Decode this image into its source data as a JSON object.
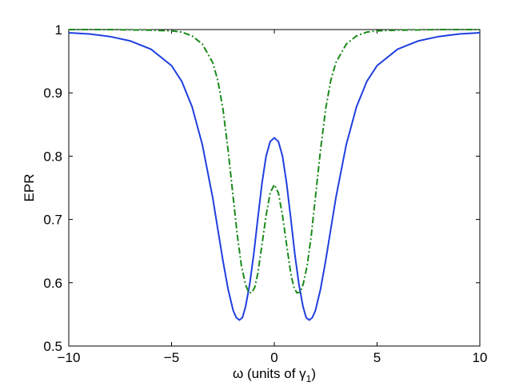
{
  "chart_data": {
    "type": "line",
    "title": "",
    "xlabel": "ω (units of γ",
    "xlabel_subscript": "1",
    "xlabel_suffix": ")",
    "ylabel": "EPR",
    "xlim": [
      -10,
      10
    ],
    "ylim": [
      0.5,
      1
    ],
    "xticks": [
      -10,
      -5,
      0,
      5,
      10
    ],
    "xtick_labels": [
      "−10",
      "−5",
      "0",
      "5",
      "10"
    ],
    "yticks": [
      0.5,
      0.6,
      0.7,
      0.8,
      0.9,
      1
    ],
    "ytick_labels": [
      "0.5",
      "0.6",
      "0.7",
      "0.8",
      "0.9",
      "1"
    ],
    "grid": false,
    "series": [
      {
        "style": "solid",
        "color": "#1f3fdf",
        "x": [
          -10,
          -9,
          -8,
          -7,
          -6,
          -5,
          -4.5,
          -4,
          -3.5,
          -3,
          -2.75,
          -2.5,
          -2.25,
          -2,
          -1.85,
          -1.7,
          -1.55,
          -1.4,
          -1.2,
          -1,
          -0.8,
          -0.6,
          -0.4,
          -0.2,
          0,
          0.2,
          0.4,
          0.6,
          0.8,
          1,
          1.2,
          1.4,
          1.55,
          1.7,
          1.85,
          2,
          2.25,
          2.5,
          2.75,
          3,
          3.5,
          4,
          4.5,
          5,
          6,
          7,
          8,
          9,
          10
        ],
        "y": [
          0.995,
          0.993,
          0.989,
          0.982,
          0.969,
          0.943,
          0.918,
          0.878,
          0.818,
          0.735,
          0.685,
          0.635,
          0.59,
          0.556,
          0.545,
          0.541,
          0.545,
          0.562,
          0.597,
          0.645,
          0.702,
          0.757,
          0.8,
          0.823,
          0.829,
          0.823,
          0.8,
          0.757,
          0.702,
          0.645,
          0.597,
          0.562,
          0.545,
          0.541,
          0.545,
          0.556,
          0.59,
          0.635,
          0.685,
          0.735,
          0.818,
          0.878,
          0.918,
          0.943,
          0.969,
          0.982,
          0.989,
          0.993,
          0.995
        ]
      },
      {
        "style": "dash-dot",
        "color": "#1a8a1a",
        "x": [
          -10,
          -8,
          -6,
          -5,
          -4.5,
          -4,
          -3.5,
          -3,
          -2.75,
          -2.5,
          -2.25,
          -2,
          -1.8,
          -1.6,
          -1.4,
          -1.25,
          -1.1,
          -0.95,
          -0.8,
          -0.6,
          -0.4,
          -0.2,
          0,
          0.2,
          0.4,
          0.6,
          0.8,
          0.95,
          1.1,
          1.25,
          1.4,
          1.6,
          1.8,
          2,
          2.25,
          2.5,
          2.75,
          3,
          3.5,
          4,
          4.5,
          5,
          6,
          8,
          10
        ],
        "y": [
          1,
          1,
          0.999,
          0.998,
          0.996,
          0.99,
          0.977,
          0.948,
          0.92,
          0.875,
          0.81,
          0.735,
          0.675,
          0.627,
          0.597,
          0.585,
          0.584,
          0.593,
          0.615,
          0.66,
          0.706,
          0.742,
          0.755,
          0.742,
          0.706,
          0.66,
          0.615,
          0.593,
          0.584,
          0.585,
          0.597,
          0.627,
          0.675,
          0.735,
          0.81,
          0.875,
          0.92,
          0.948,
          0.977,
          0.99,
          0.996,
          0.998,
          0.999,
          1,
          1
        ]
      }
    ]
  }
}
